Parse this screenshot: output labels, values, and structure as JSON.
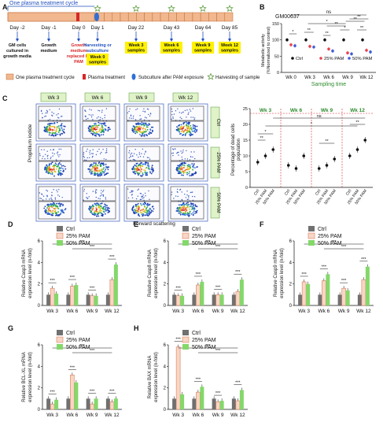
{
  "panel_labels": {
    "A": "A",
    "B": "B",
    "C": "C",
    "D": "D",
    "E": "E",
    "F": "F",
    "G": "G",
    "H": "H"
  },
  "panelA": {
    "treatment_cycle_label": "One plasma treatment cycle",
    "days": [
      "Day -2",
      "Day -1",
      "Day 0",
      "Day 1",
      "Day 22",
      "Day 43",
      "Day 64",
      "Day 85"
    ],
    "notes": [
      {
        "day": "Day -2",
        "text": [
          "GM cells",
          "cultured in",
          "growth media"
        ],
        "color": "#111111"
      },
      {
        "day": "Day -1",
        "text": [
          "Growth",
          "medium"
        ],
        "color": "#111111"
      },
      {
        "day": "Day 0",
        "text": [
          "Growth",
          "medium",
          "replaced by",
          "PAM"
        ],
        "color": "#d62728"
      },
      {
        "day": "Day 1",
        "text": [
          "Harvesting or",
          "subculture"
        ],
        "color": "#1f4fbf"
      }
    ],
    "samples": [
      {
        "day": "Day 1",
        "text": [
          "Week 0",
          "samples"
        ]
      },
      {
        "day": "Day 22",
        "text": [
          "Week 3",
          "samples"
        ]
      },
      {
        "day": "Day 43",
        "text": [
          "Week 6",
          "samples"
        ]
      },
      {
        "day": "Day 64",
        "text": [
          "Week 9",
          "samples"
        ]
      },
      {
        "day": "Day 85",
        "text": [
          "Week 12",
          "samples"
        ]
      }
    ],
    "legend": [
      "One plasma treatment cycle",
      "Plasma treatment",
      "Subculture after PAM exposure",
      "Harvesting of sample"
    ]
  },
  "chart_data": [
    {
      "type": "scatter",
      "panel": "B",
      "title": "GM00637",
      "xlabel": "Sampling time",
      "ylabel": "Metabolic activity (%Normalized to control)",
      "categories": [
        "Wk 0",
        "Wk 3",
        "Wk 6",
        "Wk 9",
        "Wk 12"
      ],
      "ylim": [
        0,
        150
      ],
      "yticks": [
        0,
        50,
        100,
        150
      ],
      "series": [
        {
          "name": "Ctrl",
          "color": "#111111",
          "values": [
            100,
            100,
            100,
            100,
            100
          ]
        },
        {
          "name": "25% PAM",
          "color": "#e8424c",
          "values": [
            85,
            80,
            72,
            60,
            68
          ]
        },
        {
          "name": "50% PAM",
          "color": "#3f5fd6",
          "values": [
            82,
            78,
            66,
            57,
            63
          ]
        }
      ],
      "significance": [
        "*",
        "**",
        "**",
        "*",
        "**",
        "**",
        "*",
        "**",
        "**",
        "ns"
      ]
    },
    {
      "type": "scatter",
      "panel": "C",
      "ylabel": "Percentage of dead cells population",
      "groups": [
        "Wk 3",
        "Wk 6",
        "Wk 9",
        "Wk 12"
      ],
      "categories": [
        "Ctrl",
        "25% PAM",
        "50% PAM"
      ],
      "ylim": [
        0,
        25
      ],
      "yticks": [
        0,
        5,
        10,
        15,
        20,
        25
      ],
      "values": [
        [
          8,
          10,
          12
        ],
        [
          7,
          6,
          10
        ],
        [
          6,
          7,
          9
        ],
        [
          10,
          12,
          15
        ]
      ],
      "significance": [
        "**",
        "*",
        "**",
        "**",
        "ns",
        "*"
      ]
    },
    {
      "type": "bar",
      "panel": "D",
      "ylabel": "Relative Casp3 mRNA expression level (n-fold)",
      "categories": [
        "Wk 3",
        "Wk 6",
        "Wk 9",
        "Wk 12"
      ],
      "ylim": [
        0,
        6
      ],
      "yticks": [
        0,
        2,
        4,
        6
      ],
      "series": [
        {
          "name": "Ctrl",
          "values": [
            1,
            1,
            1,
            1
          ]
        },
        {
          "name": "25% PAM",
          "values": [
            1.6,
            1.8,
            0.9,
            2.4
          ]
        },
        {
          "name": "50% PAM",
          "values": [
            1.1,
            1.9,
            0.9,
            3.8
          ]
        }
      ]
    },
    {
      "type": "bar",
      "panel": "E",
      "ylabel": "Relative Casp8 mRNA expression level (n-fold)",
      "categories": [
        "Wk 3",
        "Wk 6",
        "Wk 9",
        "Wk 12"
      ],
      "ylim": [
        0,
        6
      ],
      "yticks": [
        0,
        2,
        4,
        6
      ],
      "series": [
        {
          "name": "Ctrl",
          "values": [
            1,
            1,
            1,
            1
          ]
        },
        {
          "name": "25% PAM",
          "values": [
            0.9,
            1.9,
            1.0,
            1.3
          ]
        },
        {
          "name": "50% PAM",
          "values": [
            0.9,
            2.2,
            1.0,
            2.4
          ]
        }
      ]
    },
    {
      "type": "bar",
      "panel": "F",
      "ylabel": "Relative Casp9 mRNA expression level (n-fold)",
      "categories": [
        "Wk 3",
        "Wk 6",
        "Wk 9",
        "Wk 12"
      ],
      "ylim": [
        0,
        6
      ],
      "yticks": [
        0,
        2,
        4,
        6
      ],
      "series": [
        {
          "name": "Ctrl",
          "values": [
            1,
            1,
            1,
            1
          ]
        },
        {
          "name": "25% PAM",
          "values": [
            2.2,
            2.3,
            1.6,
            2.4
          ]
        },
        {
          "name": "50% PAM",
          "values": [
            2.0,
            2.9,
            1.4,
            3.6
          ]
        }
      ]
    },
    {
      "type": "bar",
      "panel": "G",
      "ylabel": "Relative BCL-XL mRNA expression level (n-fold)",
      "categories": [
        "Wk 3",
        "Wk 6",
        "Wk 9",
        "Wk 12"
      ],
      "ylim": [
        0,
        6
      ],
      "yticks": [
        0,
        2,
        4,
        6
      ],
      "series": [
        {
          "name": "Ctrl",
          "values": [
            1,
            1,
            1,
            1
          ]
        },
        {
          "name": "25% PAM",
          "values": [
            0.5,
            3.2,
            0.5,
            0.7
          ]
        },
        {
          "name": "50% PAM",
          "values": [
            0.9,
            2.5,
            1.0,
            1.0
          ]
        }
      ]
    },
    {
      "type": "bar",
      "panel": "H",
      "ylabel": "Relative BAX mRNA expression level (n-fold)",
      "categories": [
        "Wk 3",
        "Wk 6",
        "Wk 9",
        "Wk 12"
      ],
      "ylim": [
        0,
        6
      ],
      "yticks": [
        0,
        2,
        4,
        6
      ],
      "series": [
        {
          "name": "Ctrl",
          "values": [
            1,
            1,
            1,
            1
          ]
        },
        {
          "name": "25% PAM",
          "values": [
            5.8,
            1.6,
            0.7,
            0.8
          ]
        },
        {
          "name": "50% PAM",
          "values": [
            1.4,
            2.1,
            0.8,
            1.8
          ]
        }
      ]
    }
  ],
  "bar_colors": {
    "Ctrl": "#707070",
    "25% PAM": "#f8d6c4",
    "25% PAM edge": "#d98060",
    "50% PAM": "#84d86a"
  },
  "flow": {
    "weeks": [
      "Wk 3",
      "Wk 6",
      "Wk 9",
      "Wk 12"
    ],
    "rows": [
      "Ctrl",
      "25% PAM",
      "50% PAM"
    ],
    "xlabel": "Forward scattering",
    "ylabel": "Propidium iodide"
  }
}
